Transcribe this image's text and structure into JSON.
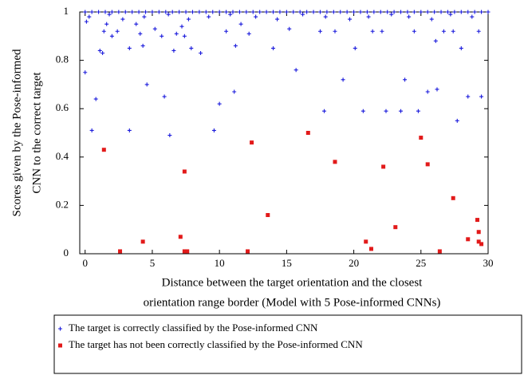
{
  "chart_data": {
    "type": "scatter",
    "y_label": [
      "Scores given by the Pose-informed",
      "CNN to the correct target"
    ],
    "x_label": [
      "Distance between the target orientation and the closest",
      "orientation range border (Model with 5 Pose-informed CNNs)"
    ],
    "xlim": [
      -0.4,
      30
    ],
    "ylim": [
      0,
      1
    ],
    "xticks": [
      0,
      5,
      10,
      15,
      20,
      25,
      30
    ],
    "yticks": [
      0,
      0.2,
      0.4,
      0.6,
      0.8,
      1
    ],
    "series": [
      {
        "name": "The target is correctly classified by the Pose-informed CNN",
        "color": "#1a1adc",
        "marker": "plus",
        "x": [
          0.0,
          0.1,
          0.5,
          0.8,
          1.1,
          1.3,
          1.4,
          1.6,
          2.0,
          2.4,
          3.3,
          3.3,
          3.8,
          4.1,
          4.3,
          4.6,
          5.2,
          5.7,
          5.9,
          6.3,
          6.6,
          6.8,
          7.2,
          7.4,
          7.9,
          8.6,
          9.6,
          10.0,
          10.5,
          11.1,
          11.2,
          11.6,
          12.2,
          14.0,
          15.2,
          15.7,
          17.5,
          17.8,
          18.6,
          19.2,
          20.1,
          20.7,
          21.4,
          22.1,
          22.4,
          23.5,
          23.8,
          24.5,
          24.8,
          25.5,
          26.1,
          26.2,
          26.7,
          27.4,
          27.7,
          28.0,
          28.5,
          29.3,
          29.5,
          0,
          0.5,
          1,
          1.5,
          2,
          2.5,
          3,
          3.5,
          4,
          4.5,
          5,
          5.5,
          6,
          6.5,
          7,
          7.5,
          8,
          8.5,
          9,
          9.5,
          10,
          10.5,
          11,
          11.5,
          12,
          12.5,
          13,
          13.5,
          14,
          14.5,
          15,
          15.5,
          16,
          16.5,
          17,
          17.5,
          18,
          18.5,
          19,
          19.5,
          20,
          20.5,
          21,
          21.5,
          22,
          22.5,
          23,
          23.5,
          24,
          24.5,
          25,
          25.5,
          26,
          26.5,
          27,
          27.5,
          28,
          28.5,
          29,
          29.5,
          30,
          0.3,
          1.8,
          2.8,
          4.4,
          6.2,
          7.7,
          9.2,
          10.8,
          12.7,
          14.3,
          16.2,
          17.9,
          19.7,
          21.1,
          22.8,
          24.1,
          25.8,
          27.2,
          28.8
        ],
        "values": [
          0.75,
          0.96,
          0.51,
          0.64,
          0.84,
          0.83,
          0.92,
          0.95,
          0.9,
          0.92,
          0.85,
          0.51,
          0.95,
          0.91,
          0.86,
          0.7,
          0.93,
          0.9,
          0.65,
          0.49,
          0.84,
          0.91,
          0.94,
          0.9,
          0.85,
          0.83,
          0.51,
          0.62,
          0.92,
          0.67,
          0.86,
          0.95,
          0.91,
          0.85,
          0.93,
          0.76,
          0.92,
          0.59,
          0.92,
          0.72,
          0.85,
          0.59,
          0.92,
          0.92,
          0.59,
          0.59,
          0.72,
          0.92,
          0.59,
          0.67,
          0.88,
          0.68,
          0.92,
          0.92,
          0.55,
          0.85,
          0.65,
          0.92,
          0.65,
          1,
          1,
          1,
          1,
          1,
          1,
          1,
          1,
          1,
          1,
          1,
          1,
          1,
          1,
          1,
          1,
          1,
          1,
          1,
          1,
          1,
          1,
          1,
          1,
          1,
          1,
          1,
          1,
          1,
          1,
          1,
          1,
          1,
          1,
          1,
          1,
          1,
          1,
          1,
          1,
          1,
          1,
          1,
          1,
          1,
          1,
          1,
          1,
          1,
          1,
          1,
          1,
          1,
          1,
          1,
          1,
          1,
          1,
          1,
          1,
          1,
          0.98,
          0.99,
          0.97,
          0.98,
          0.99,
          0.97,
          0.98,
          0.99,
          0.98,
          0.97,
          0.99,
          0.98,
          0.97,
          0.98,
          0.99,
          0.98,
          0.97,
          0.99,
          0.98
        ]
      },
      {
        "name": "The target has not been correctly classified by the Pose-informed CNN",
        "color": "#e21a1a",
        "marker": "square",
        "x": [
          1.4,
          2.6,
          4.3,
          7.1,
          7.4,
          7.4,
          7.6,
          12.1,
          12.4,
          13.6,
          16.6,
          18.6,
          20.9,
          21.3,
          22.2,
          23.1,
          25.0,
          25.5,
          26.4,
          27.4,
          28.5,
          29.2,
          29.3,
          29.3,
          29.5
        ],
        "values": [
          0.43,
          0.01,
          0.05,
          0.07,
          0.34,
          0.01,
          0.01,
          0.01,
          0.46,
          0.16,
          0.5,
          0.38,
          0.05,
          0.02,
          0.36,
          0.11,
          0.48,
          0.37,
          0.01,
          0.23,
          0.06,
          0.14,
          0.09,
          0.05,
          0.04
        ]
      }
    ]
  }
}
